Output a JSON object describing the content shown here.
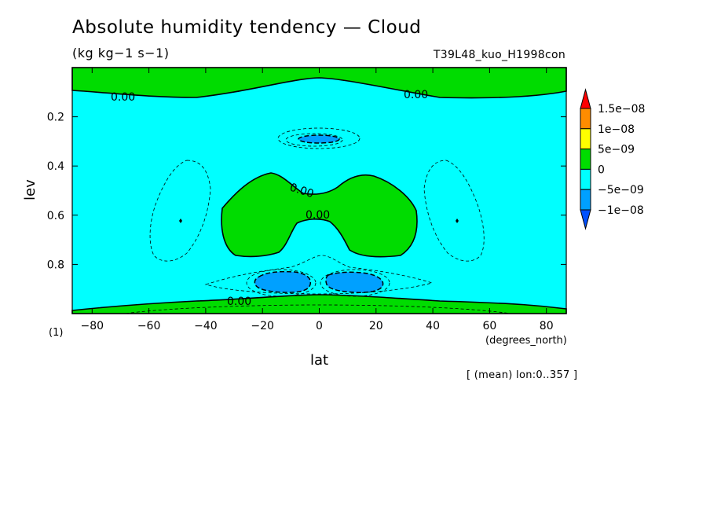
{
  "chart_data": {
    "type": "heatmap",
    "title": "Absolute humidity tendency — Cloud",
    "units": "(kg kg−1 s−1)",
    "run_label": "T39L48_kuo_H1998con",
    "xlabel": "lat",
    "x_unit_label": "(degrees_north)",
    "ylabel": "lev",
    "y_axis_marker": "(1)",
    "footnote": "[ (mean) lon:0..357 ]",
    "xlim": [
      -87,
      87
    ],
    "ylim": [
      1.0,
      0.0
    ],
    "x_ticks": [
      -80,
      -60,
      -40,
      -20,
      0,
      20,
      40,
      60,
      80
    ],
    "y_ticks": [
      0.2,
      0.4,
      0.6,
      0.8
    ],
    "contour_labels": [
      "0.00",
      "0.00",
      "0.00",
      "0.00",
      "0.00"
    ],
    "colorbar": {
      "levels": [
        {
          "label": "1.5e−08",
          "value": 1.5e-08,
          "color": "#ff8c00"
        },
        {
          "label": "1e−08",
          "value": 1e-08,
          "color": "#ffff00"
        },
        {
          "label": "5e−09",
          "value": 5e-09,
          "color": "#00dc00"
        },
        {
          "label": "0",
          "value": 0,
          "color": "#00ffff"
        },
        {
          "label": "−5e−09",
          "value": -5e-09,
          "color": "#00a0ff"
        },
        {
          "label": "−1e−08",
          "value": -1e-08,
          "color": "#0050ff"
        }
      ],
      "over_color": "#ff0000",
      "under_color": "#0050ff"
    },
    "regions": [
      {
        "name": "top positive band",
        "sign": "positive",
        "lat_range": [
          -87,
          87
        ],
        "lev_range": [
          0.0,
          0.12
        ]
      },
      {
        "name": "bottom positive band",
        "sign": "positive",
        "lat_range": [
          -87,
          87
        ],
        "lev_range": [
          0.93,
          1.0
        ]
      },
      {
        "name": "subtropical positive lobe south",
        "sign": "positive",
        "lat_range": [
          -35,
          -5
        ],
        "lev_range": [
          0.43,
          0.8
        ]
      },
      {
        "name": "subtropical positive lobe north",
        "sign": "positive",
        "lat_range": [
          5,
          35
        ],
        "lev_range": [
          0.43,
          0.8
        ]
      },
      {
        "name": "upper negative core",
        "sign": "negative",
        "lat_range": [
          -10,
          10
        ],
        "lev_range": [
          0.28,
          0.31
        ]
      },
      {
        "name": "lower negative core south",
        "sign": "negative",
        "lat_range": [
          -23,
          -2
        ],
        "lev_range": [
          0.82,
          0.91
        ]
      },
      {
        "name": "lower negative core north",
        "sign": "negative",
        "lat_range": [
          2,
          23
        ],
        "lev_range": [
          0.82,
          0.91
        ]
      }
    ],
    "grid": false
  }
}
